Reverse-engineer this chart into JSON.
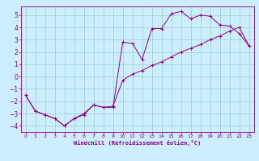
{
  "xlabel": "Windchill (Refroidissement éolien,°C)",
  "xlim": [
    -0.5,
    23.5
  ],
  "ylim": [
    -4.5,
    5.7
  ],
  "yticks": [
    -4,
    -3,
    -2,
    -1,
    0,
    1,
    2,
    3,
    4,
    5
  ],
  "xticks": [
    0,
    1,
    2,
    3,
    4,
    5,
    6,
    7,
    8,
    9,
    10,
    11,
    12,
    13,
    14,
    15,
    16,
    17,
    18,
    19,
    20,
    21,
    22,
    23
  ],
  "line_color": "#880088",
  "bg_color": "#cceeff",
  "grid_color": "#99cccc",
  "curve1": [
    [
      0,
      -1.5
    ],
    [
      1,
      -2.8
    ],
    [
      2,
      -3.1
    ],
    [
      3,
      -3.4
    ],
    [
      4,
      -4.0
    ],
    [
      5,
      -3.4
    ],
    [
      6,
      -3.1
    ],
    [
      7,
      -2.3
    ],
    [
      8,
      -2.5
    ],
    [
      9,
      -2.5
    ],
    [
      10,
      2.8
    ],
    [
      11,
      2.7
    ],
    [
      12,
      1.4
    ],
    [
      13,
      3.9
    ],
    [
      14,
      3.9
    ],
    [
      15,
      5.1
    ],
    [
      16,
      5.3
    ],
    [
      17,
      4.7
    ],
    [
      18,
      5.0
    ],
    [
      19,
      4.9
    ],
    [
      20,
      4.2
    ],
    [
      21,
      4.1
    ],
    [
      22,
      3.5
    ],
    [
      23,
      2.5
    ]
  ],
  "curve2": [
    [
      0,
      -1.5
    ],
    [
      1,
      -2.8
    ],
    [
      2,
      -3.1
    ],
    [
      3,
      -3.4
    ],
    [
      4,
      -4.0
    ],
    [
      5,
      -3.4
    ],
    [
      6,
      -3.0
    ],
    [
      7,
      -2.3
    ],
    [
      8,
      -2.5
    ],
    [
      9,
      -2.4
    ],
    [
      10,
      -0.3
    ],
    [
      11,
      0.2
    ],
    [
      12,
      0.5
    ],
    [
      13,
      0.9
    ],
    [
      14,
      1.2
    ],
    [
      15,
      1.6
    ],
    [
      16,
      2.0
    ],
    [
      17,
      2.3
    ],
    [
      18,
      2.6
    ],
    [
      19,
      3.0
    ],
    [
      20,
      3.3
    ],
    [
      21,
      3.7
    ],
    [
      22,
      4.0
    ],
    [
      23,
      2.5
    ]
  ]
}
